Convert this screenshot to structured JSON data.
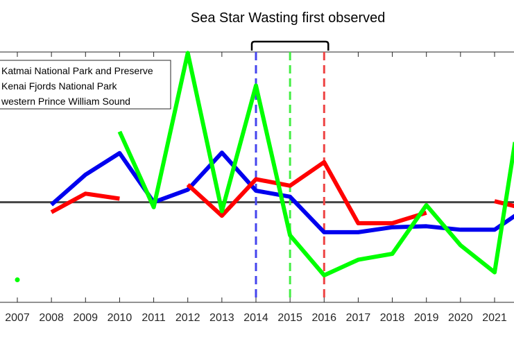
{
  "chart_data": {
    "type": "line",
    "title": "",
    "xlabel": "",
    "ylabel": "",
    "x_ticks": [
      2007,
      2008,
      2009,
      2010,
      2011,
      2012,
      2013,
      2014,
      2015,
      2016,
      2017,
      2018,
      2019,
      2020,
      2021
    ],
    "xlim": [
      2007,
      2021.6
    ],
    "ylim": [
      -2.0,
      3.0
    ],
    "grid": false,
    "legend_placement": "top-left",
    "reference_line": {
      "y": 0,
      "color": "#444444"
    },
    "annotation": {
      "text": "Sea Star Wasting first observed",
      "x_from": 2014,
      "x_to": 2016
    },
    "series": [
      {
        "name": "Katmai National Park and Preserve",
        "color": "#0000ee",
        "marker_line": {
          "x": 2014,
          "color": "#4444ee"
        },
        "segments": [
          [
            [
              2008,
              -0.05
            ],
            [
              2009,
              0.55
            ],
            [
              2010,
              0.98
            ],
            [
              2011,
              0.0
            ],
            [
              2012,
              0.25
            ],
            [
              2013,
              0.99
            ],
            [
              2014,
              0.23
            ],
            [
              2015,
              0.11
            ],
            [
              2016,
              -0.6
            ],
            [
              2017,
              -0.6
            ],
            [
              2018,
              -0.5
            ],
            [
              2019,
              -0.48
            ],
            [
              2020,
              -0.55
            ],
            [
              2021,
              -0.55
            ],
            [
              2021.6,
              -0.27
            ]
          ]
        ]
      },
      {
        "name": "Kenai Fjords National Park",
        "color": "#ff0000",
        "marker_line": {
          "x": 2016,
          "color": "#ee4444"
        },
        "segments": [
          [
            [
              2008,
              -0.2
            ],
            [
              2009,
              0.17
            ],
            [
              2010,
              0.07
            ]
          ],
          [
            [
              2012,
              0.35
            ],
            [
              2013,
              -0.27
            ],
            [
              2014,
              0.46
            ],
            [
              2015,
              0.33
            ],
            [
              2016,
              0.8
            ],
            [
              2017,
              -0.42
            ],
            [
              2018,
              -0.42
            ],
            [
              2019,
              -0.21
            ]
          ],
          [
            [
              2021,
              0.02
            ],
            [
              2021.6,
              -0.08
            ]
          ]
        ]
      },
      {
        "name": "western Prince William Sound",
        "color": "#00ff00",
        "marker_line": {
          "x": 2015,
          "color": "#44ee44"
        },
        "points": [
          [
            2007,
            -1.55
          ]
        ],
        "segments": [
          [
            [
              2010,
              1.41
            ],
            [
              2011,
              -0.1
            ],
            [
              2012,
              2.98
            ],
            [
              2013,
              -0.18
            ],
            [
              2014,
              2.33
            ],
            [
              2015,
              -0.66
            ],
            [
              2016,
              -1.46
            ],
            [
              2017,
              -1.15
            ],
            [
              2018,
              -1.03
            ],
            [
              2019,
              -0.06
            ],
            [
              2020,
              -0.86
            ],
            [
              2021,
              -1.4
            ],
            [
              2021.6,
              1.2
            ]
          ]
        ]
      }
    ]
  }
}
